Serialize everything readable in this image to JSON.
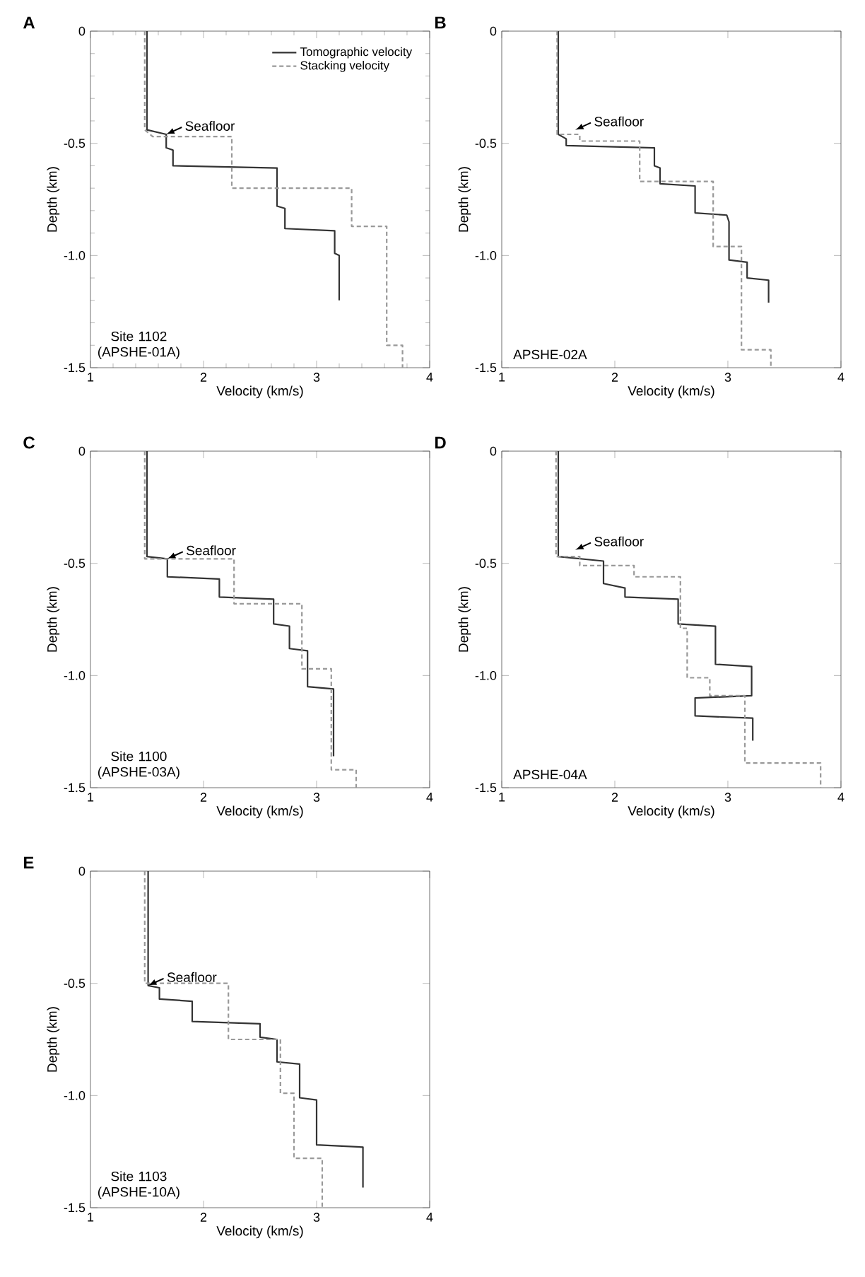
{
  "chart_data": [
    {
      "type": "line",
      "title": "A",
      "xlabel": "Velocity (km/s)",
      "ylabel": "Depth (km)",
      "xlim": [
        1,
        4
      ],
      "ylim": [
        -1.5,
        0
      ],
      "legend": "top right",
      "xticks": [
        1,
        2,
        3,
        4,
        {
          "value": 1.2,
          "label": null
        },
        {
          "value": 1.4,
          "label": null
        },
        {
          "value": 1.6,
          "label": null
        },
        {
          "value": 1.8,
          "label": null
        },
        {
          "value": 2.2,
          "label": null
        },
        {
          "value": 2.4,
          "label": null
        },
        {
          "value": 2.6,
          "label": null
        },
        {
          "value": 2.8,
          "label": null
        },
        {
          "value": 3.2,
          "label": null
        },
        {
          "value": 3.4,
          "label": null
        },
        {
          "value": 3.6,
          "label": null
        },
        {
          "value": 3.8,
          "label": null
        }
      ],
      "yticks": [
        0,
        -0.5,
        {
          "value": -1.0,
          "label": "-1.0"
        },
        -1.5,
        {
          "value": -0.1,
          "label": null
        },
        {
          "value": -0.2,
          "label": null
        },
        {
          "value": -0.3,
          "label": null
        },
        {
          "value": -0.4,
          "label": null
        },
        {
          "value": -0.6,
          "label": null
        },
        {
          "value": -0.7,
          "label": null
        },
        {
          "value": -0.8,
          "label": null
        },
        {
          "value": -0.9,
          "label": null
        },
        {
          "value": -1.1,
          "label": null
        },
        {
          "value": -1.2,
          "label": null
        },
        {
          "value": -1.3,
          "label": null
        },
        {
          "value": -1.4,
          "label": null
        }
      ],
      "series": [
        {
          "name": "Tomographic velocity",
          "color": "#333333",
          "line_style": "solid",
          "x": [
            1.5,
            1.5,
            1.67,
            1.67,
            1.73,
            1.73,
            2.65,
            2.65,
            2.72,
            2.72,
            3.16,
            3.16,
            3.2,
            3.2
          ],
          "values": [
            0,
            -0.44,
            -0.46,
            -0.52,
            -0.53,
            -0.6,
            -0.61,
            -0.78,
            -0.79,
            -0.88,
            -0.89,
            -0.99,
            -1.0,
            -1.2
          ]
        },
        {
          "name": "Stacking velocity",
          "color": "#999999",
          "line_style": "dashed",
          "x": [
            1.48,
            1.48,
            1.55,
            2.25,
            2.25,
            3.31,
            3.31,
            3.62,
            3.62,
            3.76,
            3.76
          ],
          "values": [
            0,
            -0.44,
            -0.47,
            -0.47,
            -0.7,
            -0.7,
            -0.87,
            -0.87,
            -1.4,
            -1.4,
            -1.5
          ]
        }
      ],
      "annotations": [
        {
          "text": "Seafloor",
          "x": 1.67,
          "y": -0.46
        },
        "Site 1102 (APSHE-01A)"
      ]
    },
    {
      "type": "line",
      "title": "B",
      "xlabel": "Velocity (km/s)",
      "ylabel": "Depth (km)",
      "xlim": [
        1,
        4
      ],
      "ylim": [
        -1.5,
        0
      ],
      "xticks": [
        1,
        2,
        3,
        4
      ],
      "yticks": [
        0,
        -0.5,
        {
          "value": -1.0,
          "label": "-1.0"
        },
        -1.5
      ],
      "series": [
        {
          "color": "#333333",
          "line_style": "solid",
          "x": [
            1.5,
            1.5,
            1.57,
            1.57,
            2.35,
            2.35,
            2.4,
            2.4,
            2.71,
            2.71,
            2.99,
            3.01,
            3.01,
            3.17,
            3.17,
            3.36,
            3.36
          ],
          "values": [
            0,
            -0.46,
            -0.48,
            -0.51,
            -0.52,
            -0.6,
            -0.61,
            -0.68,
            -0.69,
            -0.81,
            -0.82,
            -0.85,
            -1.02,
            -1.03,
            -1.1,
            -1.11,
            -1.21
          ]
        },
        {
          "color": "#999999",
          "line_style": "dashed",
          "x": [
            1.49,
            1.49,
            1.69,
            1.69,
            2.22,
            2.22,
            2.87,
            2.87,
            3.12,
            3.12,
            3.38,
            3.38
          ],
          "values": [
            0,
            -0.46,
            -0.46,
            -0.49,
            -0.49,
            -0.67,
            -0.67,
            -0.96,
            -0.96,
            -1.42,
            -1.42,
            -1.5
          ]
        }
      ],
      "annotations": [
        {
          "text": "Seafloor",
          "x": 1.65,
          "y": -0.44
        },
        "APSHE-02A"
      ]
    },
    {
      "type": "line",
      "title": "C",
      "xlabel": "Velocity (km/s)",
      "ylabel": "Depth (km)",
      "xlim": [
        1,
        4
      ],
      "ylim": [
        -1.5,
        0
      ],
      "xticks": [
        1,
        2,
        3,
        4
      ],
      "yticks": [
        0,
        -0.5,
        {
          "value": -1.0,
          "label": "-1.0"
        },
        -1.5
      ],
      "series": [
        {
          "color": "#333333",
          "line_style": "solid",
          "x": [
            1.5,
            1.5,
            1.68,
            1.68,
            2.14,
            2.14,
            2.62,
            2.62,
            2.76,
            2.76,
            2.92,
            2.92,
            3.15,
            3.15
          ],
          "values": [
            0,
            -0.47,
            -0.48,
            -0.56,
            -0.57,
            -0.65,
            -0.66,
            -0.77,
            -0.78,
            -0.88,
            -0.89,
            -1.05,
            -1.06,
            -1.36
          ]
        },
        {
          "color": "#999999",
          "line_style": "dashed",
          "x": [
            1.48,
            1.48,
            2.27,
            2.27,
            2.87,
            2.87,
            3.13,
            3.13,
            3.35,
            3.35
          ],
          "values": [
            0,
            -0.48,
            -0.48,
            -0.68,
            -0.68,
            -0.97,
            -0.97,
            -1.42,
            -1.42,
            -1.5
          ]
        }
      ],
      "annotations": [
        {
          "text": "Seafloor",
          "x": 1.68,
          "y": -0.48
        },
        "Site 1100 (APSHE-03A)"
      ]
    },
    {
      "type": "line",
      "title": "D",
      "xlabel": "Velocity (km/s)",
      "ylabel": "Depth (km)",
      "xlim": [
        1,
        4
      ],
      "ylim": [
        -1.5,
        0
      ],
      "xticks": [
        1,
        2,
        3,
        4
      ],
      "yticks": [
        0,
        -0.5,
        {
          "value": -1.0,
          "label": "-1.0"
        },
        -1.5
      ],
      "series": [
        {
          "color": "#333333",
          "line_style": "solid",
          "x": [
            1.5,
            1.5,
            1.9,
            1.9,
            2.09,
            2.09,
            2.56,
            2.56,
            2.89,
            2.89,
            3.21,
            3.21,
            2.71,
            2.71,
            3.22,
            3.22
          ],
          "values": [
            0,
            -0.47,
            -0.49,
            -0.59,
            -0.61,
            -0.65,
            -0.66,
            -0.77,
            -0.78,
            -0.95,
            -0.96,
            -1.09,
            -1.1,
            -1.18,
            -1.19,
            -1.29
          ]
        },
        {
          "color": "#999999",
          "line_style": "dashed",
          "x": [
            1.48,
            1.48,
            1.69,
            1.69,
            2.17,
            2.17,
            2.58,
            2.58,
            2.64,
            2.64,
            2.84,
            2.84,
            3.15,
            3.15,
            3.82,
            3.82
          ],
          "values": [
            0,
            -0.47,
            -0.47,
            -0.51,
            -0.51,
            -0.56,
            -0.56,
            -0.79,
            -0.79,
            -1.01,
            -1.01,
            -1.09,
            -1.09,
            -1.39,
            -1.39,
            -1.5
          ]
        }
      ],
      "annotations": [
        {
          "text": "Seafloor",
          "x": 1.65,
          "y": -0.44
        },
        "APSHE-04A"
      ]
    },
    {
      "type": "line",
      "title": "E",
      "xlabel": "Velocity (km/s)",
      "ylabel": "Depth (km)",
      "xlim": [
        1,
        4
      ],
      "ylim": [
        -1.5,
        0
      ],
      "xticks": [
        1,
        2,
        3,
        4
      ],
      "yticks": [
        0,
        -0.5,
        {
          "value": -1.0,
          "label": "-1.0"
        },
        -1.5
      ],
      "series": [
        {
          "color": "#333333",
          "line_style": "solid",
          "x": [
            1.51,
            1.51,
            1.61,
            1.61,
            1.9,
            1.9,
            2.5,
            2.5,
            2.65,
            2.65,
            2.85,
            2.85,
            3.0,
            3.0,
            3.41,
            3.41
          ],
          "values": [
            0,
            -0.51,
            -0.52,
            -0.57,
            -0.58,
            -0.67,
            -0.68,
            -0.74,
            -0.75,
            -0.85,
            -0.86,
            -1.01,
            -1.02,
            -1.22,
            -1.23,
            -1.41
          ]
        },
        {
          "color": "#999999",
          "line_style": "dashed",
          "x": [
            1.48,
            1.48,
            2.22,
            2.22,
            2.68,
            2.68,
            2.8,
            2.8,
            3.05,
            3.05
          ],
          "values": [
            0,
            -0.5,
            -0.5,
            -0.75,
            -0.75,
            -0.99,
            -0.99,
            -1.28,
            -1.28,
            -1.5
          ]
        }
      ],
      "annotations": [
        {
          "text": "Seafloor",
          "x": 1.51,
          "y": -0.51
        },
        "Site 1103 (APSHE-10A)"
      ]
    }
  ]
}
